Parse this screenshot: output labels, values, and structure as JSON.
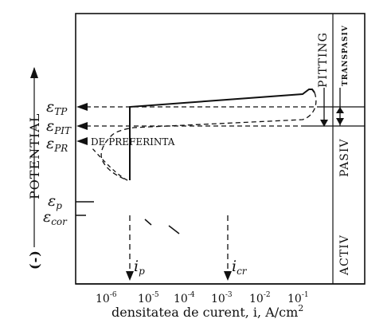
{
  "figure": {
    "y_axis_label": "POTENTIAL",
    "y_axis_sign": "(-)",
    "x_axis_label": "densitatea de curent, i, A/cm",
    "x_axis_unit_exp": "2",
    "note_preferinta": "DE PREFERINTA"
  },
  "potential_labels": [
    {
      "id": "tp",
      "symbol": "ε",
      "sub": "TP"
    },
    {
      "id": "pit",
      "symbol": "ε",
      "sub": "PIT"
    },
    {
      "id": "pr",
      "symbol": "ε",
      "sub": "PR"
    },
    {
      "id": "p",
      "symbol": "ε",
      "sub": "p"
    },
    {
      "id": "cor",
      "symbol": "ε",
      "sub": "cor"
    }
  ],
  "regions": {
    "pitting": "PITTING",
    "transpasiv": "TRANSPASIV",
    "pasiv": "PASIV",
    "activ": "ACTIV"
  },
  "current_markers": [
    {
      "id": "ip",
      "symbol": "i",
      "sub": "p"
    },
    {
      "id": "icr",
      "symbol": "i",
      "sub": "cr"
    }
  ],
  "x_ticks": [
    {
      "base": "10",
      "exp": "-6"
    },
    {
      "base": "10",
      "exp": "-5"
    },
    {
      "base": "10",
      "exp": "-4"
    },
    {
      "base": "10",
      "exp": "-3"
    },
    {
      "base": "10",
      "exp": "-2"
    },
    {
      "base": "10",
      "exp": "-1"
    }
  ],
  "chart_data": {
    "type": "line",
    "x_scale": "log",
    "xlabel": "densitatea de curent, i, A/cm2",
    "ylabel": "POTENTIAL",
    "x_ticks": [
      "10^-6",
      "10^-5",
      "10^-4",
      "10^-3",
      "10^-2",
      "10^-1"
    ],
    "potential_levels_top_to_bottom": [
      "ε_TP",
      "ε_PIT",
      "ε_PR",
      "ε_p",
      "ε_cor"
    ],
    "regions_top_to_bottom": [
      "TRANSPASIV",
      "PITTING",
      "PASIV",
      "ACTIV"
    ],
    "current_markers": [
      "i_p",
      "i_cr"
    ],
    "series": [
      {
        "style": "solid",
        "description": "anodic polarization curve"
      },
      {
        "style": "dashed",
        "description": "reverse scan / pitting curve"
      }
    ]
  }
}
